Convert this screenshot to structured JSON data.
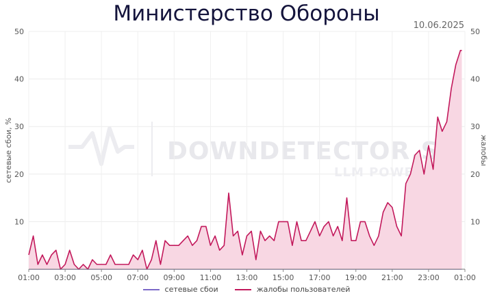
{
  "title": "Министерство Обороны",
  "date": "10.06.2025",
  "watermark": {
    "main": "DOWNDETECTOR.SU",
    "sub": "LLM POWERED"
  },
  "chart_data": {
    "type": "area",
    "ylabel_left": "сетевые сбои, %",
    "ylabel_right": "жалобы",
    "ylim": [
      0,
      50
    ],
    "yticks": [
      10,
      20,
      30,
      40,
      50
    ],
    "x_tick_labels": [
      "01:00",
      "03:00",
      "05:00",
      "07:00",
      "09:00",
      "11:00",
      "13:00",
      "15:00",
      "17:00",
      "19:00",
      "21:00",
      "23:00",
      "01:00"
    ],
    "x_range_hours": [
      0,
      24
    ],
    "grid": true,
    "legend_position": "bottom",
    "series": [
      {
        "name": "сетевые сбои",
        "color": "#7b68c8",
        "x": [
          0,
          23.83
        ],
        "values": [
          0,
          0
        ]
      },
      {
        "name": "жалобы пользователей",
        "color": "#c2185b",
        "fill": "#f8d7e3",
        "x": [
          0,
          0.25,
          0.5,
          0.75,
          1,
          1.25,
          1.5,
          1.75,
          2,
          2.25,
          2.5,
          2.75,
          3,
          3.25,
          3.5,
          3.75,
          4,
          4.25,
          4.5,
          4.75,
          5,
          5.25,
          5.5,
          5.75,
          6,
          6.25,
          6.5,
          6.75,
          7,
          7.25,
          7.5,
          7.75,
          8,
          8.25,
          8.5,
          8.75,
          9,
          9.25,
          9.5,
          9.75,
          10,
          10.25,
          10.5,
          10.75,
          11,
          11.25,
          11.5,
          11.75,
          12,
          12.25,
          12.5,
          12.75,
          13,
          13.25,
          13.5,
          13.75,
          14,
          14.25,
          14.5,
          14.75,
          15,
          15.25,
          15.5,
          15.75,
          16,
          16.25,
          16.5,
          16.75,
          17,
          17.25,
          17.5,
          17.75,
          18,
          18.25,
          18.5,
          18.75,
          19,
          19.25,
          19.5,
          19.75,
          20,
          20.25,
          20.5,
          20.75,
          21,
          21.25,
          21.5,
          21.75,
          22,
          22.25,
          22.5,
          22.75,
          23,
          23.25,
          23.5,
          23.75,
          23.83
        ],
        "values": [
          3,
          7,
          1,
          3,
          1,
          3,
          4,
          0,
          1,
          4,
          1,
          0,
          1,
          0,
          2,
          1,
          1,
          1,
          3,
          1,
          1,
          1,
          1,
          3,
          2,
          4,
          0,
          2,
          6,
          1,
          6,
          5,
          5,
          5,
          6,
          7,
          5,
          6,
          9,
          9,
          5,
          7,
          4,
          5,
          16,
          7,
          8,
          3,
          7,
          8,
          2,
          8,
          6,
          7,
          6,
          10,
          10,
          10,
          5,
          10,
          6,
          6,
          8,
          10,
          7,
          9,
          10,
          7,
          9,
          6,
          15,
          6,
          6,
          10,
          10,
          7,
          5,
          7,
          12,
          14,
          13,
          9,
          7,
          18,
          20,
          24,
          25,
          20,
          26,
          21,
          32,
          29,
          31,
          38,
          43,
          46,
          46
        ]
      }
    ]
  }
}
